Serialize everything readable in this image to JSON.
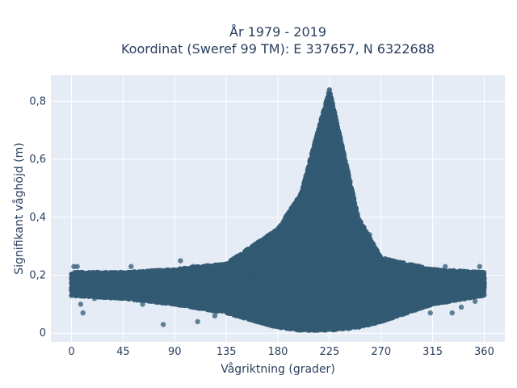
{
  "chart_data": {
    "type": "scatter",
    "title_lines": [
      "År 1979 - 2019",
      "Koordinat (Sweref 99 TM): E 337657, N 6322688"
    ],
    "xlabel": "Vågriktning (grader)",
    "ylabel": "Signifikant våghöjd (m)",
    "xlim": [
      -18,
      378
    ],
    "ylim": [
      -0.03,
      0.89
    ],
    "x_ticks": [
      0,
      45,
      90,
      135,
      180,
      225,
      270,
      315,
      360
    ],
    "y_ticks": [
      0,
      0.2,
      0.4,
      0.6,
      0.8
    ],
    "y_tick_labels": [
      "0",
      "0,2",
      "0,4",
      "0,6",
      "0,8"
    ],
    "grid": true,
    "marker_color": "#325a73",
    "plot_background": "#e5ecf6",
    "distribution": [
      {
        "x": 0,
        "y_min": 0.13,
        "y_max": 0.21
      },
      {
        "x": 45,
        "y_min": 0.12,
        "y_max": 0.21
      },
      {
        "x": 90,
        "y_min": 0.1,
        "y_max": 0.22
      },
      {
        "x": 135,
        "y_min": 0.07,
        "y_max": 0.24
      },
      {
        "x": 180,
        "y_min": 0.02,
        "y_max": 0.36
      },
      {
        "x": 200,
        "y_min": 0.01,
        "y_max": 0.48
      },
      {
        "x": 225,
        "y_min": 0.01,
        "y_max": 0.84
      },
      {
        "x": 250,
        "y_min": 0.02,
        "y_max": 0.4
      },
      {
        "x": 270,
        "y_min": 0.04,
        "y_max": 0.26
      },
      {
        "x": 315,
        "y_min": 0.1,
        "y_max": 0.22
      },
      {
        "x": 360,
        "y_min": 0.13,
        "y_max": 0.21
      }
    ],
    "outliers": [
      {
        "x": 2,
        "y": 0.23
      },
      {
        "x": 5,
        "y": 0.23
      },
      {
        "x": 8,
        "y": 0.1
      },
      {
        "x": 10,
        "y": 0.07
      },
      {
        "x": 20,
        "y": 0.12
      },
      {
        "x": 30,
        "y": 0.21
      },
      {
        "x": 52,
        "y": 0.23
      },
      {
        "x": 62,
        "y": 0.1
      },
      {
        "x": 80,
        "y": 0.03
      },
      {
        "x": 95,
        "y": 0.25
      },
      {
        "x": 106,
        "y": 0.23
      },
      {
        "x": 110,
        "y": 0.04
      },
      {
        "x": 125,
        "y": 0.06
      },
      {
        "x": 155,
        "y": 0.1
      },
      {
        "x": 260,
        "y": 0.34
      },
      {
        "x": 282,
        "y": 0.1
      },
      {
        "x": 285,
        "y": 0.07
      },
      {
        "x": 305,
        "y": 0.09
      },
      {
        "x": 313,
        "y": 0.07
      },
      {
        "x": 326,
        "y": 0.23
      },
      {
        "x": 332,
        "y": 0.07
      },
      {
        "x": 340,
        "y": 0.09
      },
      {
        "x": 352,
        "y": 0.11
      },
      {
        "x": 356,
        "y": 0.23
      }
    ]
  }
}
